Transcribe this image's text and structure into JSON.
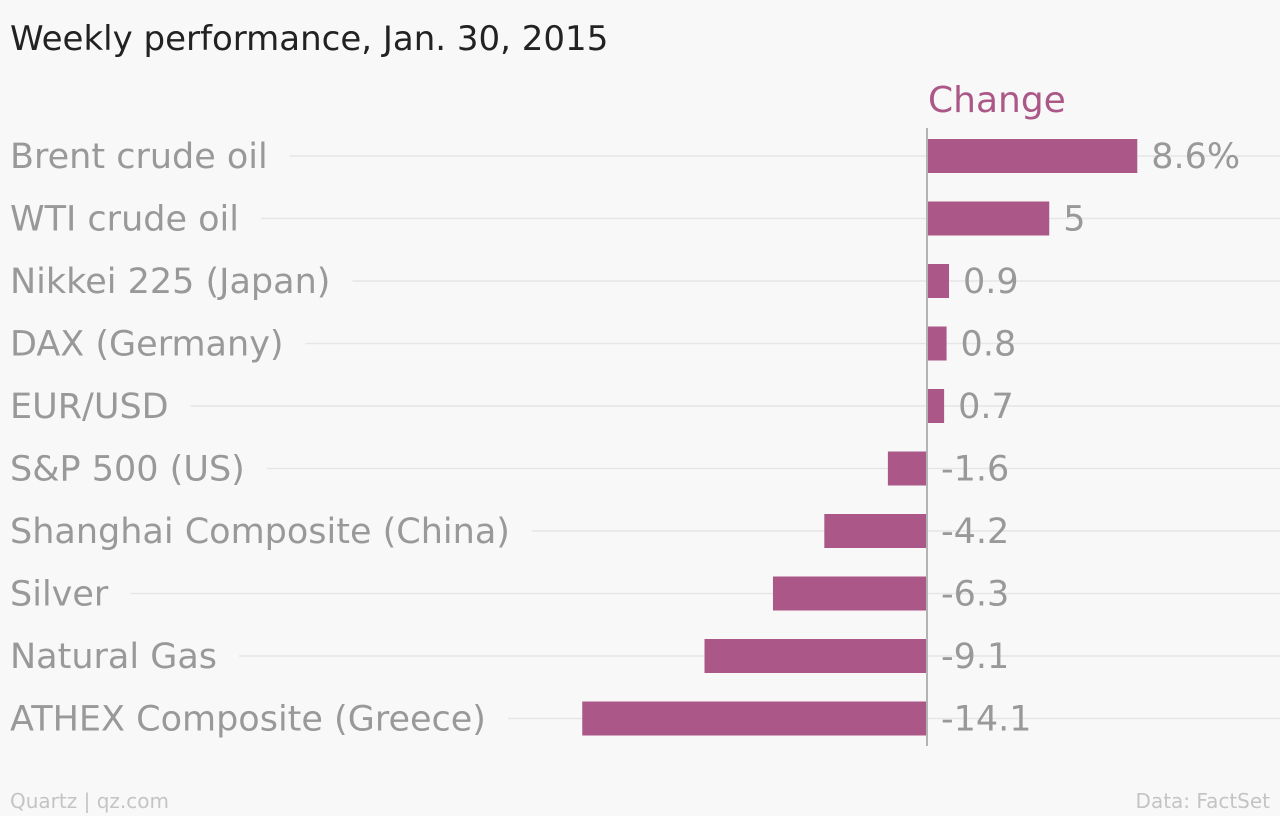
{
  "chart_data": {
    "type": "bar",
    "orientation": "horizontal",
    "title": "Weekly performance, Jan. 30, 2015",
    "categories": [
      "Brent crude oil",
      "WTI crude oil",
      "Nikkei 225 (Japan)",
      "DAX (Germany)",
      "EUR/USD",
      "S&P 500 (US)",
      "Shanghai Composite (China)",
      "Silver",
      "Natural Gas",
      "ATHEX Composite (Greece)"
    ],
    "series": [
      {
        "name": "Change",
        "values": [
          8.6,
          5,
          0.9,
          0.8,
          0.7,
          -1.6,
          -4.2,
          -6.3,
          -9.1,
          -14.1
        ],
        "value_labels": [
          "8.6%",
          "5",
          "0.9",
          "0.8",
          "0.7",
          "-1.6",
          "-4.2",
          "-6.3",
          "-9.1",
          "-14.1"
        ],
        "color": "#ab5787"
      }
    ],
    "unit": "%",
    "xlim": [
      -14.1,
      8.6
    ],
    "grid": true,
    "legend": "top"
  },
  "footer": {
    "source_left": "Quartz | qz.com",
    "source_right": "Data: FactSet"
  },
  "colors": {
    "background": "#f8f8f8",
    "bar": "#ab5787",
    "title": "#222222",
    "labels": "#999999",
    "footer": "#c4c4c4"
  }
}
